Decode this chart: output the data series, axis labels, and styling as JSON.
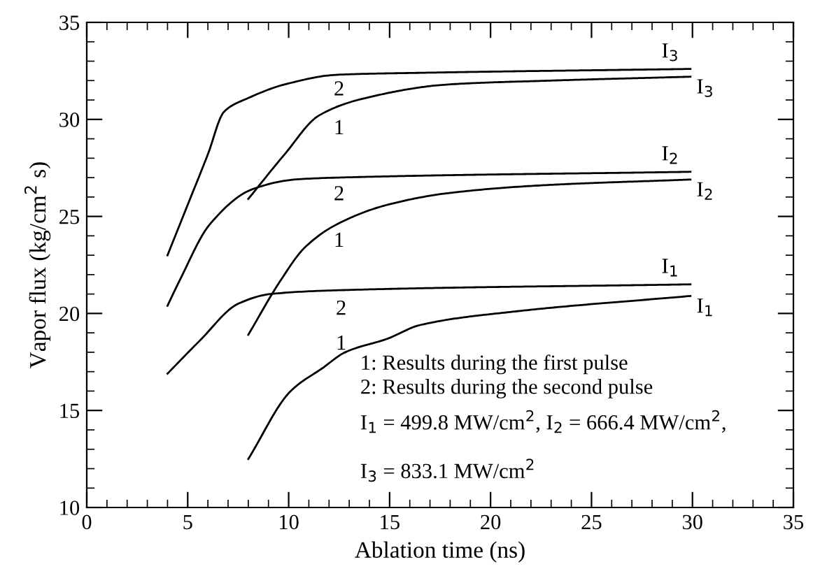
{
  "chart_data": {
    "type": "line",
    "xlabel": "Ablation time (ns)",
    "ylabel": "Vapor flux (kg/cm$^{2}$ s)",
    "xlim": [
      0,
      35
    ],
    "ylim": [
      10,
      35
    ],
    "xticks": [
      0,
      5,
      10,
      15,
      20,
      25,
      30,
      35
    ],
    "yticks": [
      10,
      15,
      20,
      25,
      30,
      35
    ],
    "grid": false,
    "legend": "right",
    "marker": "none",
    "line_style": "solid",
    "series": [
      {
        "name": "I$_{3}$",
        "color": "#000000",
        "x": [
          4.0,
          5.0,
          6.0,
          6.8,
          8.0,
          9.8,
          12.4,
          16.5,
          29.9
        ],
        "values": [
          23.0,
          25.6,
          28.2,
          30.4,
          31.1,
          31.8,
          32.3,
          32.4,
          32.6
        ]
      },
      {
        "name": "I$_{3}$",
        "color": "#000000",
        "x": [
          8.0,
          9.8,
          11.5,
          13.8,
          17.9,
          23.0,
          29.9
        ],
        "values": [
          25.9,
          28.2,
          30.2,
          31.1,
          31.8,
          32.0,
          32.2
        ]
      },
      {
        "name": "I$_{2}$",
        "color": "#000000",
        "x": [
          4.0,
          4.6,
          6.1,
          8.2,
          10.3,
          12.4,
          29.9
        ],
        "values": [
          20.4,
          21.7,
          24.6,
          26.4,
          26.9,
          27.0,
          27.3
        ]
      },
      {
        "name": "I$_{2}$",
        "color": "#000000",
        "x": [
          8.0,
          9.6,
          10.8,
          12.4,
          14.9,
          17.9,
          22.5,
          29.9
        ],
        "values": [
          18.9,
          21.7,
          23.4,
          24.6,
          25.6,
          26.2,
          26.6,
          26.9
        ]
      },
      {
        "name": "I$_{1}$",
        "color": "#000000",
        "x": [
          4.0,
          5.6,
          7.5,
          9.1,
          12.6,
          29.9
        ],
        "values": [
          16.9,
          18.6,
          20.5,
          21.0,
          21.2,
          21.5
        ]
      },
      {
        "name": "I$_{1}$",
        "color": "#000000",
        "x": [
          8.0,
          10.1,
          11.7,
          12.8,
          14.9,
          16.5,
          21.2,
          29.9
        ],
        "values": [
          12.5,
          16.0,
          17.2,
          18.0,
          18.7,
          19.4,
          20.1,
          20.9
        ]
      }
    ],
    "annotations": [
      "2",
      "1",
      "2",
      "1",
      "2",
      "1",
      "1: Results during the first pulse",
      "2: Results during the second pulse",
      "I$_{1}$ = 499.8 MW/cm$^{2}$, I$_{2}$ = 666.4 MW/cm$^{2}$,",
      "I$_{3}$ = 833.1 MW/cm$^{2}$"
    ]
  }
}
